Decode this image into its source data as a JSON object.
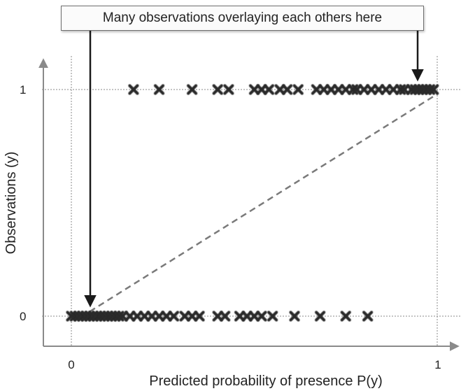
{
  "chart_data": {
    "type": "scatter",
    "title": "",
    "xlabel": "Predicted probability of presence P(y)",
    "ylabel": "Observations (y)",
    "xlim": [
      0,
      1
    ],
    "ylim": [
      0,
      1
    ],
    "x_ticks": [
      "0",
      "1"
    ],
    "y_ticks": [
      "0",
      "1"
    ],
    "grid": "dotted reference lines at 0 and 1 on both axes",
    "annotation": "Many observations overlaying each others here",
    "reference_line": {
      "style": "dashed",
      "from": [
        0.05,
        0.02
      ],
      "to": [
        1.0,
        0.98
      ]
    },
    "marker": "x",
    "series": [
      {
        "values": [
          {
            "x": 0.17,
            "y": 1
          },
          {
            "x": 0.24,
            "y": 1
          },
          {
            "x": 0.33,
            "y": 1
          },
          {
            "x": 0.4,
            "y": 1
          },
          {
            "x": 0.43,
            "y": 1
          },
          {
            "x": 0.5,
            "y": 1
          },
          {
            "x": 0.52,
            "y": 1
          },
          {
            "x": 0.54,
            "y": 1
          },
          {
            "x": 0.57,
            "y": 1
          },
          {
            "x": 0.59,
            "y": 1
          },
          {
            "x": 0.62,
            "y": 1
          },
          {
            "x": 0.67,
            "y": 1
          },
          {
            "x": 0.69,
            "y": 1
          },
          {
            "x": 0.71,
            "y": 1
          },
          {
            "x": 0.73,
            "y": 1
          },
          {
            "x": 0.75,
            "y": 1
          },
          {
            "x": 0.77,
            "y": 1
          },
          {
            "x": 0.78,
            "y": 1
          },
          {
            "x": 0.8,
            "y": 1
          },
          {
            "x": 0.82,
            "y": 1
          },
          {
            "x": 0.84,
            "y": 1
          },
          {
            "x": 0.86,
            "y": 1
          },
          {
            "x": 0.88,
            "y": 1
          },
          {
            "x": 0.9,
            "y": 1
          },
          {
            "x": 0.91,
            "y": 1
          },
          {
            "x": 0.93,
            "y": 1
          },
          {
            "x": 0.94,
            "y": 1
          },
          {
            "x": 0.95,
            "y": 1
          },
          {
            "x": 0.96,
            "y": 1
          },
          {
            "x": 0.97,
            "y": 1
          },
          {
            "x": 0.98,
            "y": 1
          },
          {
            "x": 0.99,
            "y": 1
          },
          {
            "x": 0.0,
            "y": 0
          },
          {
            "x": 0.01,
            "y": 0
          },
          {
            "x": 0.02,
            "y": 0
          },
          {
            "x": 0.03,
            "y": 0
          },
          {
            "x": 0.04,
            "y": 0
          },
          {
            "x": 0.05,
            "y": 0
          },
          {
            "x": 0.06,
            "y": 0
          },
          {
            "x": 0.07,
            "y": 0
          },
          {
            "x": 0.08,
            "y": 0
          },
          {
            "x": 0.09,
            "y": 0
          },
          {
            "x": 0.1,
            "y": 0
          },
          {
            "x": 0.11,
            "y": 0
          },
          {
            "x": 0.12,
            "y": 0
          },
          {
            "x": 0.13,
            "y": 0
          },
          {
            "x": 0.14,
            "y": 0
          },
          {
            "x": 0.16,
            "y": 0
          },
          {
            "x": 0.18,
            "y": 0
          },
          {
            "x": 0.2,
            "y": 0
          },
          {
            "x": 0.22,
            "y": 0
          },
          {
            "x": 0.24,
            "y": 0
          },
          {
            "x": 0.26,
            "y": 0
          },
          {
            "x": 0.28,
            "y": 0
          },
          {
            "x": 0.31,
            "y": 0
          },
          {
            "x": 0.33,
            "y": 0
          },
          {
            "x": 0.35,
            "y": 0
          },
          {
            "x": 0.4,
            "y": 0
          },
          {
            "x": 0.42,
            "y": 0
          },
          {
            "x": 0.46,
            "y": 0
          },
          {
            "x": 0.48,
            "y": 0
          },
          {
            "x": 0.5,
            "y": 0
          },
          {
            "x": 0.52,
            "y": 0
          },
          {
            "x": 0.55,
            "y": 0
          },
          {
            "x": 0.61,
            "y": 0
          },
          {
            "x": 0.68,
            "y": 0
          },
          {
            "x": 0.75,
            "y": 0
          },
          {
            "x": 0.81,
            "y": 0
          }
        ]
      }
    ]
  },
  "colors": {
    "marker": "#2b2b2b",
    "axis": "#8a8a8a",
    "reference_line": "#888888",
    "dashed_line": "#7a7a7a",
    "arrow": "#1a1a1a"
  }
}
